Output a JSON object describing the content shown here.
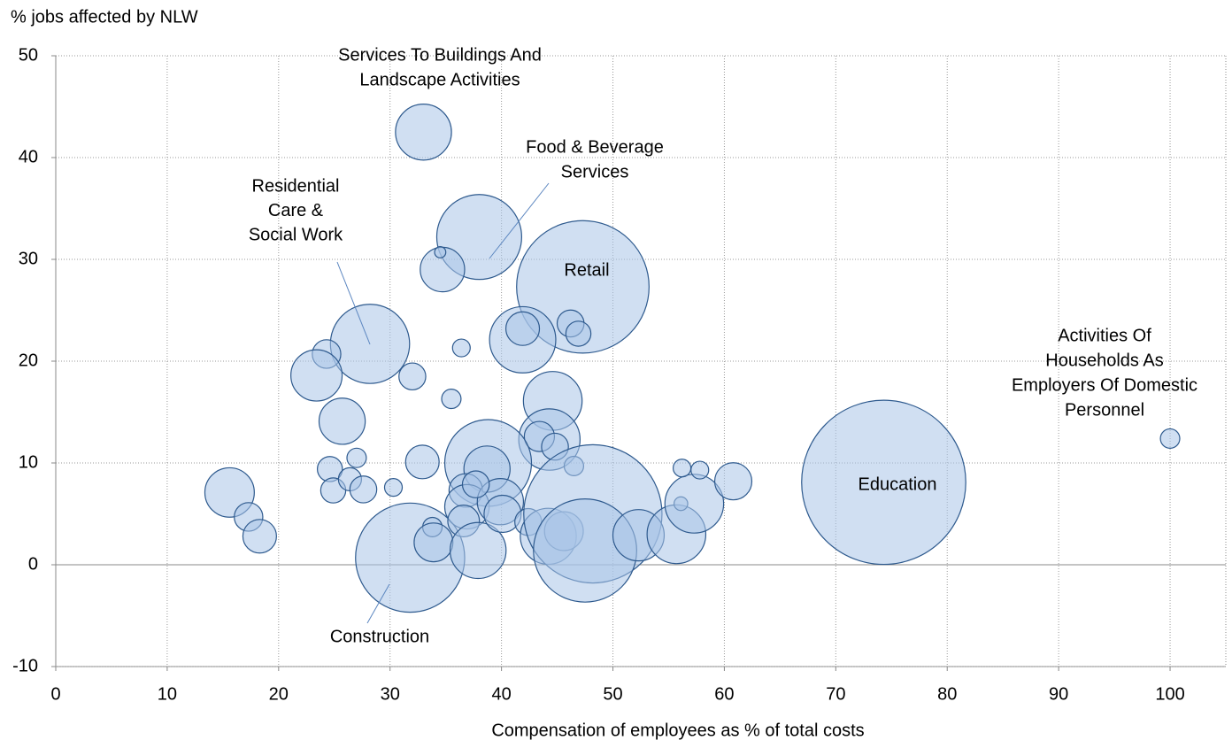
{
  "chart_data": {
    "type": "scatter",
    "y_label": "% jobs affected by NLW",
    "x_label": "Compensation of employees as % of total costs",
    "xlim": [
      0,
      105
    ],
    "xticks": [
      0,
      10,
      20,
      30,
      40,
      50,
      60,
      70,
      80,
      90,
      100
    ],
    "ylim": [
      -10,
      50
    ],
    "yticks": [
      -10,
      0,
      10,
      20,
      30,
      40,
      50
    ],
    "grid": true,
    "color": "#a9c4e8",
    "edgecolor": "#2e5a8e",
    "series": [
      {
        "x": [
          33.0,
          38.0,
          34.7,
          34.5,
          47.3,
          28.2,
          41.9,
          41.9,
          46.2,
          46.9,
          36.4,
          24.3,
          23.4,
          32.0,
          35.5,
          25.7,
          44.6,
          44.3,
          43.4,
          44.8,
          46.5,
          27.0,
          24.6,
          32.9,
          38.8,
          38.7,
          15.6,
          17.3,
          18.3,
          24.9,
          26.4,
          27.6,
          30.3,
          31.8,
          33.8,
          33.9,
          36.8,
          36.9,
          36.6,
          37.9,
          39.9,
          40.1,
          37.7,
          42.4,
          44.2,
          45.6,
          48.2,
          47.5,
          52.3,
          55.7,
          56.1,
          57.3,
          56.2,
          57.8,
          60.8,
          74.3,
          100.0
        ],
        "values": [
          42.5,
          32.2,
          29.0,
          30.7,
          27.3,
          21.7,
          22.1,
          23.2,
          23.7,
          22.7,
          21.3,
          20.7,
          18.6,
          18.5,
          16.3,
          14.1,
          16.1,
          12.3,
          12.6,
          11.6,
          9.7,
          10.5,
          9.4,
          10.1,
          10.0,
          9.4,
          7.1,
          4.7,
          2.8,
          7.3,
          8.4,
          7.4,
          7.6,
          0.7,
          3.7,
          2.2,
          7.3,
          5.7,
          4.3,
          1.4,
          6.2,
          5.0,
          7.9,
          4.2,
          2.8,
          3.3,
          5.0,
          1.4,
          2.9,
          3.0,
          6.0,
          6.0,
          9.5,
          9.3,
          8.2,
          8.1,
          12.4
        ],
        "sizes": [
          10,
          23,
          6.3,
          0.4,
          56,
          20,
          14,
          3.6,
          2.3,
          2,
          1,
          2.6,
          8.4,
          2.3,
          1.2,
          6.8,
          11,
          12,
          2.9,
          2.3,
          1.2,
          1.2,
          2,
          3.6,
          24,
          6.8,
          7.8,
          2.6,
          3.6,
          2,
          1.7,
          2.3,
          1,
          38,
          1.2,
          4.8,
          3.6,
          6.3,
          3.2,
          10,
          6.8,
          4.4,
          2.3,
          2.3,
          10,
          4.8,
          61,
          34,
          8.4,
          11,
          0.6,
          11,
          1,
          1,
          4.4,
          86,
          1.2
        ]
      }
    ],
    "annotations": [
      {
        "lines": [
          "Services To Buildings And",
          "Landscape Activities"
        ]
      },
      {
        "lines": [
          "Food & Beverage",
          "Services"
        ]
      },
      {
        "lines": [
          "Residential",
          "Care &",
          "Social Work"
        ]
      },
      {
        "lines": [
          "Retail"
        ]
      },
      {
        "lines": [
          "Activities Of",
          "Households As",
          "Employers Of Domestic",
          "Personnel"
        ]
      },
      {
        "lines": [
          "Education"
        ]
      },
      {
        "lines": [
          "Construction"
        ]
      }
    ]
  }
}
